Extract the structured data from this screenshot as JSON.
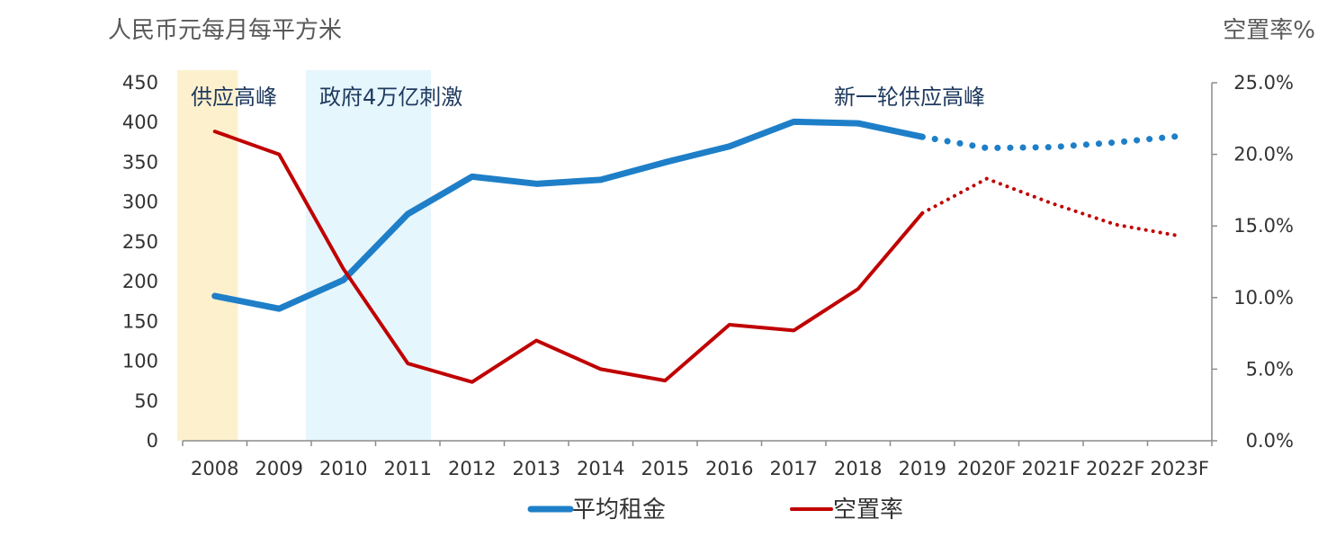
{
  "chart_data": {
    "type": "line",
    "left_axis_title": "人民币元每月每平方米",
    "right_axis_title": "空置率%",
    "categories": [
      "2008",
      "2009",
      "2010",
      "2011",
      "2012",
      "2013",
      "2014",
      "2015",
      "2016",
      "2017",
      "2018",
      "2019",
      "2020F",
      "2021F",
      "2022F",
      "2023F"
    ],
    "y_left": {
      "min": 0,
      "max": 450,
      "ticks": [
        "0",
        "50",
        "100",
        "150",
        "200",
        "250",
        "300",
        "350",
        "400",
        "450"
      ]
    },
    "y_right": {
      "min": 0,
      "max": 25,
      "ticks": [
        "0.0%",
        "5.0%",
        "10.0%",
        "15.0%",
        "20.0%",
        "25.0%"
      ]
    },
    "bands": [
      {
        "label": "供应高峰",
        "from": 2008,
        "to": 2009,
        "color": "#fdf0cd"
      },
      {
        "label": "政府4万亿刺激",
        "from": 2010,
        "to": 2012,
        "color": "#e6f6fd"
      },
      {
        "label": "新一轮供应高峰",
        "from": 2018,
        "to": 2020,
        "color": "#ececec"
      }
    ],
    "series": [
      {
        "name": "平均租金",
        "axis": "left",
        "color": "#1e7fc8",
        "values": [
          182,
          166,
          202,
          285,
          332,
          323,
          328,
          350,
          370,
          401,
          399,
          382,
          368,
          369,
          375,
          383
        ],
        "forecast_from_index": 11
      },
      {
        "name": "空置率",
        "axis": "right",
        "color": "#c00000",
        "values": [
          21.6,
          20.0,
          12.0,
          5.4,
          4.1,
          7.0,
          5.0,
          4.2,
          8.1,
          7.7,
          10.6,
          15.9,
          18.3,
          16.6,
          15.1,
          14.3
        ],
        "forecast_from_index": 11
      }
    ],
    "legend_position": "bottom"
  }
}
